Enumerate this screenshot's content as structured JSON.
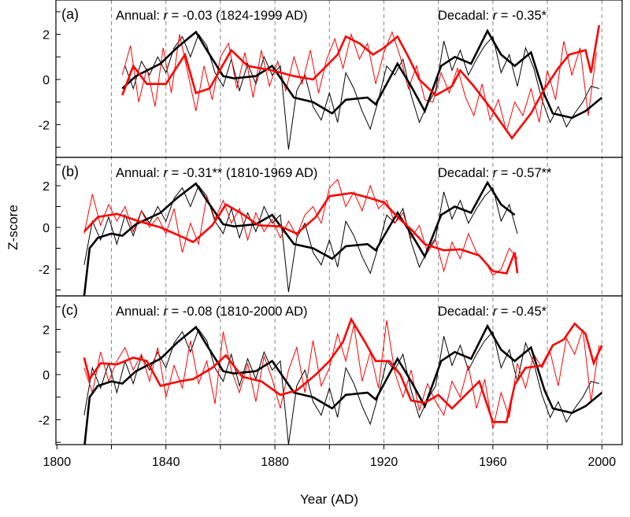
{
  "chart_data": {
    "type": "line",
    "xlabel": "Year (AD)",
    "ylabel": "Z-score",
    "xlim": [
      1800,
      2010
    ],
    "xticks": [
      1800,
      1840,
      1880,
      1920,
      1960,
      2000
    ],
    "dashed_gridlines_x": [
      1820,
      1840,
      1860,
      1880,
      1900,
      1920,
      1940,
      1960,
      1980,
      2000
    ],
    "colors": {
      "target": "#000000",
      "proxy": "#ff0000",
      "grid": "#888888"
    },
    "black_annual": {
      "start": 1810,
      "step": 3,
      "values": [
        -1.8,
        0.3,
        -0.6,
        0.5,
        -0.8,
        0.6,
        -0.4,
        0.8,
        0.2,
        1.0,
        0.3,
        1.4,
        1.9,
        1.0,
        2.0,
        1.5,
        0.3,
        -0.3,
        0.9,
        -0.5,
        0.7,
        -0.2,
        1.0,
        0.2,
        0.6,
        -3.1,
        -0.5,
        0.2,
        -1.2,
        -1.8,
        -0.6,
        -1.9,
        0.3,
        -0.4,
        -1.4,
        -2.2,
        -0.9,
        0.6,
        0.2,
        0.9,
        -0.7,
        -1.9,
        -1.1,
        -0.5,
        1.7,
        0.4,
        1.3,
        0.2,
        0.9,
        1.5,
        1.9,
        0.3,
        1.1,
        -0.3,
        1.4,
        0.5,
        -0.9,
        -1.9,
        -1.2,
        -2.1,
        -1.5,
        -1.0,
        -0.3,
        -0.4
      ]
    },
    "black_decadal": [
      [
        1810,
        -3.3
      ],
      [
        1812,
        -1.0
      ],
      [
        1815,
        -0.5
      ],
      [
        1820,
        -0.3
      ],
      [
        1824,
        -0.4
      ],
      [
        1829,
        0.15
      ],
      [
        1838,
        0.7
      ],
      [
        1844,
        1.4
      ],
      [
        1851,
        2.1
      ],
      [
        1855,
        1.3
      ],
      [
        1861,
        0.15
      ],
      [
        1865,
        0.05
      ],
      [
        1873,
        0.15
      ],
      [
        1879,
        0.6
      ],
      [
        1887,
        -0.8
      ],
      [
        1894,
        -1.0
      ],
      [
        1901,
        -1.5
      ],
      [
        1906,
        -0.9
      ],
      [
        1914,
        -0.8
      ],
      [
        1917,
        -1.1
      ],
      [
        1925,
        0.7
      ],
      [
        1930,
        -0.3
      ],
      [
        1935,
        -1.4
      ],
      [
        1941,
        0.6
      ],
      [
        1946,
        1.0
      ],
      [
        1952,
        0.7
      ],
      [
        1958,
        2.15
      ],
      [
        1963,
        1.1
      ],
      [
        1968,
        0.6
      ],
      [
        1974,
        1.2
      ],
      [
        1979,
        -0.7
      ],
      [
        1982,
        -1.5
      ],
      [
        1989,
        -1.7
      ],
      [
        1994,
        -1.4
      ],
      [
        2000,
        -0.8
      ]
    ],
    "panels": [
      {
        "label": "(a)",
        "annual_text": "Annual: ",
        "r_symbol": "r",
        "annual_value": " = -0.03 (1824-1999 AD)",
        "decadal_text": "Decadal: ",
        "decadal_value": " = -0.35*",
        "range": [
          1824,
          1999
        ],
        "ylim": [
          -3.5,
          3.5
        ],
        "yticks": [
          -2,
          0,
          2
        ],
        "red_annual": {
          "start": 1824,
          "step": 3,
          "values": [
            0.2,
            1.5,
            -1.0,
            0.5,
            -1.2,
            1.4,
            -0.6,
            2.0,
            0.3,
            -1.4,
            0.6,
            -0.9,
            1.0,
            1.6,
            -0.4,
            1.2,
            -0.8,
            1.3,
            -0.3,
            0.8,
            -0.5,
            1.0,
            -0.2,
            1.3,
            -0.6,
            0.9,
            1.8,
            0.5,
            2.0,
            0.9,
            1.6,
            -0.2,
            1.2,
            2.1,
            1.0,
            -0.4,
            0.6,
            -0.9,
            -1.0,
            0.3,
            -0.6,
            0.5,
            -0.8,
            -1.6,
            -0.2,
            -1.8,
            -0.9,
            -2.3,
            -1.0,
            -1.6,
            -0.4,
            -1.9,
            0.4,
            -0.9,
            1.7,
            0.2,
            1.4,
            -1.6,
            1.2
          ]
        },
        "red_decadal": [
          [
            1824,
            -0.7
          ],
          [
            1828,
            0.6
          ],
          [
            1833,
            -0.2
          ],
          [
            1840,
            -0.2
          ],
          [
            1847,
            1.1
          ],
          [
            1851,
            -0.6
          ],
          [
            1856,
            -0.4
          ],
          [
            1864,
            1.3
          ],
          [
            1870,
            0.6
          ],
          [
            1879,
            0.4
          ],
          [
            1887,
            0.15
          ],
          [
            1894,
            0.0
          ],
          [
            1903,
            1.1
          ],
          [
            1906,
            1.9
          ],
          [
            1911,
            1.6
          ],
          [
            1916,
            1.1
          ],
          [
            1920,
            1.4
          ],
          [
            1925,
            1.9
          ],
          [
            1929,
            1.0
          ],
          [
            1933,
            0.0
          ],
          [
            1939,
            -0.7
          ],
          [
            1945,
            -0.3
          ],
          [
            1948,
            0.4
          ],
          [
            1953,
            -0.3
          ],
          [
            1960,
            -1.4
          ],
          [
            1967,
            -2.6
          ],
          [
            1974,
            -1.5
          ],
          [
            1979,
            -0.4
          ],
          [
            1984,
            0.5
          ],
          [
            1988,
            1.1
          ],
          [
            1994,
            1.3
          ],
          [
            1996,
            0.3
          ],
          [
            1999,
            2.4
          ]
        ]
      },
      {
        "label": "(b)",
        "annual_text": "Annual: ",
        "r_symbol": "r",
        "annual_value": " = -0.31** (1810-1969 AD)",
        "decadal_text": "Decadal: ",
        "decadal_value": " = -0.57**",
        "range": [
          1810,
          1969
        ],
        "ylim": [
          -3.3,
          3.3
        ],
        "yticks": [
          -2,
          0,
          2
        ],
        "red_annual": {
          "start": 1810,
          "step": 3,
          "values": [
            -0.3,
            1.6,
            0.1,
            1.1,
            0.3,
            1.0,
            -0.2,
            0.8,
            0.0,
            0.5,
            -0.3,
            0.9,
            -1.2,
            0.2,
            -0.8,
            1.5,
            0.4,
            1.3,
            0.2,
            0.9,
            -0.6,
            0.7,
            -0.2,
            0.4,
            -0.5,
            0.3,
            -0.4,
            0.6,
            1.0,
            0.2,
            1.9,
            2.3,
            1.0,
            1.7,
            0.8,
            2.0,
            0.9,
            1.3,
            0.2,
            0.7,
            -0.5,
            0.1,
            -1.2,
            -0.6,
            -2.1,
            -0.7,
            -1.5,
            -0.3,
            -1.2,
            -1.6,
            -2.3,
            -2.0,
            -1.0,
            -1.5
          ]
        },
        "red_decadal": [
          [
            1810,
            -0.2
          ],
          [
            1815,
            0.5
          ],
          [
            1822,
            0.65
          ],
          [
            1830,
            0.3
          ],
          [
            1838,
            0.0
          ],
          [
            1845,
            -0.4
          ],
          [
            1850,
            -0.7
          ],
          [
            1857,
            0.1
          ],
          [
            1862,
            1.1
          ],
          [
            1868,
            0.65
          ],
          [
            1874,
            0.1
          ],
          [
            1882,
            0.05
          ],
          [
            1888,
            -0.3
          ],
          [
            1895,
            0.5
          ],
          [
            1900,
            1.5
          ],
          [
            1908,
            1.65
          ],
          [
            1915,
            1.4
          ],
          [
            1920,
            1.2
          ],
          [
            1925,
            0.5
          ],
          [
            1930,
            -0.1
          ],
          [
            1935,
            -0.8
          ],
          [
            1942,
            -1.1
          ],
          [
            1948,
            -1.05
          ],
          [
            1955,
            -1.35
          ],
          [
            1960,
            -2.1
          ],
          [
            1965,
            -2.2
          ],
          [
            1968,
            -1.2
          ],
          [
            1969,
            -2.2
          ]
        ]
      },
      {
        "label": "(c)",
        "annual_text": "Annual: ",
        "r_symbol": "r",
        "annual_value": " = -0.08 (1810-2000 AD)",
        "decadal_text": "Decadal: ",
        "decadal_value": " = -0.45*",
        "range": [
          1810,
          2000
        ],
        "ylim": [
          -3.3,
          3.3
        ],
        "yticks": [
          -2,
          0,
          2
        ],
        "red_annual": {
          "start": 1810,
          "step": 3,
          "values": [
            0.3,
            -0.8,
            1.0,
            -0.3,
            0.6,
            1.2,
            0.2,
            0.9,
            -0.3,
            1.2,
            -1.0,
            0.4,
            -0.6,
            1.5,
            -0.4,
            0.6,
            -1.3,
            1.9,
            0.2,
            -0.8,
            0.5,
            -1.2,
            0.8,
            -0.2,
            -1.5,
            0.2,
            1.2,
            -0.8,
            1.5,
            -0.5,
            0.3,
            1.8,
            0.6,
            2.2,
            -0.3,
            1.0,
            -0.6,
            2.4,
            0.1,
            -1.0,
            0.2,
            -1.6,
            -0.4,
            -1.2,
            -1.8,
            -0.3,
            -1.0,
            0.4,
            -1.5,
            -0.2,
            -2.4,
            -0.8,
            -1.9,
            0.5,
            -0.6,
            0.9,
            0.3,
            1.0,
            -0.5,
            1.6,
            0.9,
            2.0,
            -1.2,
            1.3
          ]
        },
        "red_decadal": [
          [
            1810,
            0.75
          ],
          [
            1812,
            -0.2
          ],
          [
            1816,
            0.5
          ],
          [
            1822,
            0.45
          ],
          [
            1828,
            0.75
          ],
          [
            1833,
            0.6
          ],
          [
            1838,
            -0.5
          ],
          [
            1845,
            -0.3
          ],
          [
            1850,
            -0.2
          ],
          [
            1857,
            0.3
          ],
          [
            1862,
            0.85
          ],
          [
            1868,
            -0.1
          ],
          [
            1875,
            -0.3
          ],
          [
            1882,
            -0.9
          ],
          [
            1888,
            -0.7
          ],
          [
            1895,
            0.0
          ],
          [
            1900,
            0.6
          ],
          [
            1905,
            1.45
          ],
          [
            1908,
            2.45
          ],
          [
            1913,
            1.45
          ],
          [
            1917,
            0.6
          ],
          [
            1922,
            0.6
          ],
          [
            1926,
            0.0
          ],
          [
            1930,
            -1.15
          ],
          [
            1935,
            -1.25
          ],
          [
            1940,
            -0.9
          ],
          [
            1945,
            -1.5
          ],
          [
            1950,
            -0.9
          ],
          [
            1955,
            -0.3
          ],
          [
            1960,
            -2.1
          ],
          [
            1965,
            -2.1
          ],
          [
            1968,
            -0.45
          ],
          [
            1972,
            0.3
          ],
          [
            1978,
            0.4
          ],
          [
            1982,
            1.3
          ],
          [
            1986,
            1.55
          ],
          [
            1990,
            2.25
          ],
          [
            1994,
            1.8
          ],
          [
            1997,
            0.5
          ],
          [
            2000,
            1.3
          ]
        ]
      }
    ]
  }
}
